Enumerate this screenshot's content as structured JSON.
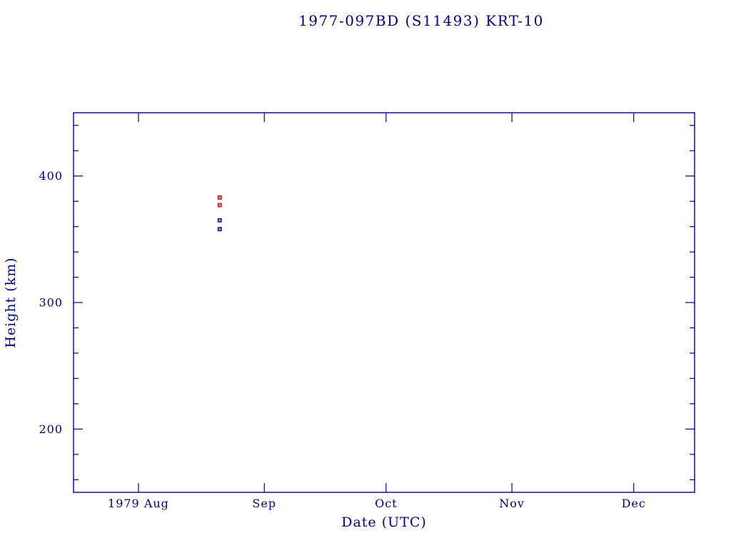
{
  "page": {
    "background": "#ffffff"
  },
  "chart_data": {
    "type": "scatter",
    "title": "1977-097BD (S11493) KRT-10",
    "xlabel": "Date (UTC)",
    "ylabel": "Height (km)",
    "grid": false,
    "legend_position": "none",
    "colors": {
      "axis": "#00008b",
      "text": "#00008b",
      "background": "#ffffff",
      "red_marker": "#cc2222",
      "blue_marker": "#2222aa"
    },
    "x_axis": {
      "unit": "days since 1979 Jul 16",
      "start_day": 0,
      "end_day": 153,
      "tick_days": [
        16,
        47,
        77,
        108,
        138
      ],
      "tick_labels": [
        "1979 Aug",
        "Sep",
        "Oct",
        "Nov",
        "Dec"
      ]
    },
    "y_axis": {
      "min": 150,
      "max": 450,
      "major_ticks": [
        200,
        300,
        400
      ],
      "minor_step": 20
    },
    "series": [
      {
        "name": "red-series",
        "color": "#cc2222",
        "marker": "square",
        "points": [
          {
            "date": "1979 Aug 21",
            "x_day": 36,
            "height_km": 383
          },
          {
            "date": "1979 Aug 21",
            "x_day": 36,
            "height_km": 377
          }
        ]
      },
      {
        "name": "blue-series",
        "color": "#2222aa",
        "marker": "square",
        "points": [
          {
            "date": "1979 Aug 21",
            "x_day": 36,
            "height_km": 365
          },
          {
            "date": "1979 Aug 21",
            "x_day": 36,
            "height_km": 358
          }
        ]
      }
    ]
  }
}
